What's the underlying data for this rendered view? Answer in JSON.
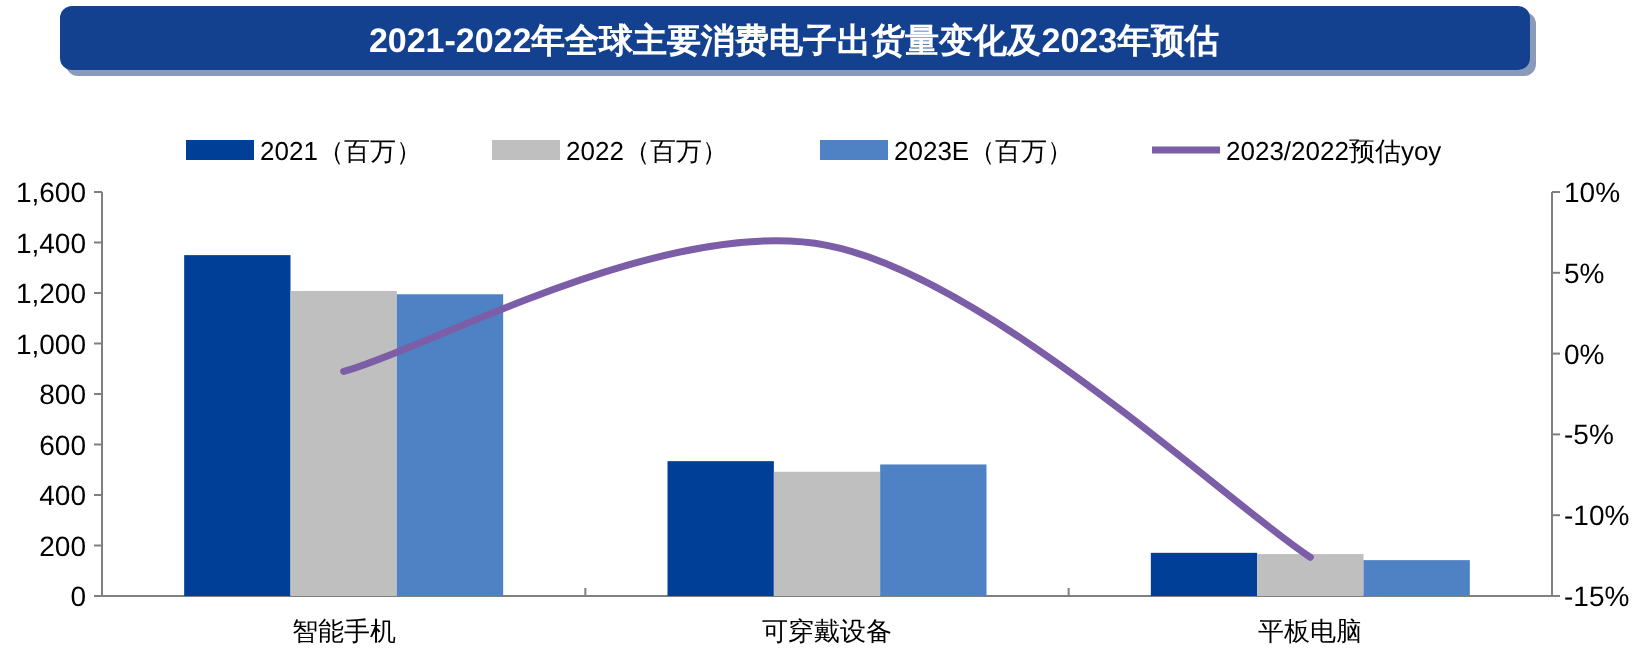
{
  "chart_data": {
    "type": "bar",
    "title": "2021-2022年全球主要消费电子出货量变化及2023年预估",
    "categories": [
      "智能手机",
      "可穿戴设备",
      "平板电脑"
    ],
    "series": [
      {
        "name": "2021（百万）",
        "color": "#003f98",
        "values": [
          1350,
          534,
          171
        ]
      },
      {
        "name": "2022（百万）",
        "color": "#bfbfbf",
        "values": [
          1208,
          492,
          166
        ]
      },
      {
        "name": "2023E（百万）",
        "color": "#4f81c5",
        "values": [
          1195,
          521,
          142
        ]
      },
      {
        "name": "2023/2022预估yoy",
        "type": "line",
        "axis": "y2",
        "color": "#7b5ea7",
        "values": [
          -1.1,
          6.7,
          -12.6
        ]
      }
    ],
    "ylim": [
      0,
      1600
    ],
    "yticks": [
      0,
      200,
      400,
      600,
      800,
      {
        "value": 1000,
        "label": "1,000"
      },
      {
        "value": 1200,
        "label": "1,200"
      },
      {
        "value": 1400,
        "label": "1,400"
      },
      {
        "value": 1600,
        "label": "1,600"
      }
    ],
    "y2lim": [
      -15,
      10
    ],
    "y2ticks": [
      {
        "value": -15,
        "label": "-15%"
      },
      {
        "value": -10,
        "label": "-10%"
      },
      {
        "value": -5,
        "label": "-5%"
      },
      {
        "value": 0,
        "label": "0%"
      },
      {
        "value": 5,
        "label": "5%"
      },
      {
        "value": 10,
        "label": "10%"
      }
    ],
    "legend": "top",
    "grid": false,
    "marker": "none"
  }
}
